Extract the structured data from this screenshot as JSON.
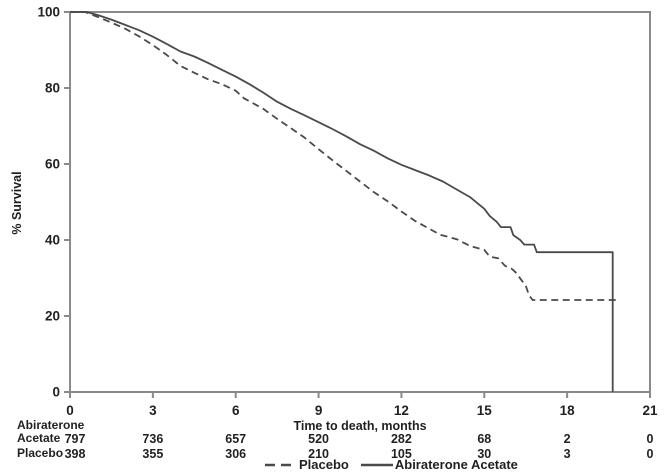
{
  "chart_data": {
    "type": "line",
    "subtype": "kaplan-meier-survival",
    "title": "",
    "xlabel": "Time to death, months",
    "ylabel": "% Survival",
    "xlim": [
      0,
      21
    ],
    "ylim": [
      0,
      100
    ],
    "x_ticks": [
      0,
      3,
      6,
      9,
      12,
      15,
      18,
      21
    ],
    "y_ticks": [
      0,
      20,
      40,
      60,
      80,
      100
    ],
    "grid": false,
    "legend_position": "bottom-center",
    "frame": "full-box",
    "series": [
      {
        "name": "Placebo",
        "style": "dashed",
        "points": [
          [
            0,
            100
          ],
          [
            0.55,
            100
          ],
          [
            1,
            98.7
          ],
          [
            1.5,
            97.2
          ],
          [
            2,
            95.6
          ],
          [
            2.5,
            93.6
          ],
          [
            3,
            91.3
          ],
          [
            3.5,
            88.7
          ],
          [
            4,
            85.8
          ],
          [
            4.5,
            84
          ],
          [
            5,
            82.3
          ],
          [
            5.5,
            81
          ],
          [
            6,
            79.3
          ],
          [
            6.3,
            77.3
          ],
          [
            6.7,
            75.7
          ],
          [
            7,
            74.5
          ],
          [
            7.5,
            71.9
          ],
          [
            8,
            69.4
          ],
          [
            8.5,
            66.9
          ],
          [
            9,
            63.9
          ],
          [
            9.5,
            61
          ],
          [
            10,
            58.2
          ],
          [
            10.5,
            55.4
          ],
          [
            11,
            52.6
          ],
          [
            11.5,
            50.2
          ],
          [
            12,
            47.5
          ],
          [
            12.5,
            45
          ],
          [
            13,
            43
          ],
          [
            13.4,
            41.4
          ],
          [
            14,
            40.2
          ],
          [
            14.5,
            38.4
          ],
          [
            15,
            37.4
          ],
          [
            15.2,
            35.6
          ],
          [
            15.5,
            35.2
          ],
          [
            15.75,
            33.2
          ],
          [
            16,
            32.4
          ],
          [
            16.15,
            31.4
          ],
          [
            16.35,
            29.4
          ],
          [
            16.5,
            28
          ],
          [
            16.62,
            25.5
          ],
          [
            16.75,
            24.2
          ],
          [
            19.9,
            24.2
          ]
        ]
      },
      {
        "name": "Abiraterone Acetate",
        "style": "solid",
        "points": [
          [
            0,
            100
          ],
          [
            0.6,
            100
          ],
          [
            1,
            99.2
          ],
          [
            1.5,
            98
          ],
          [
            2,
            96.6
          ],
          [
            2.5,
            95.2
          ],
          [
            3,
            93.5
          ],
          [
            3.5,
            91.6
          ],
          [
            4,
            89.6
          ],
          [
            4.5,
            88.3
          ],
          [
            5,
            86.6
          ],
          [
            5.5,
            84.8
          ],
          [
            6,
            83
          ],
          [
            6.5,
            81
          ],
          [
            7,
            78.8
          ],
          [
            7.5,
            76.4
          ],
          [
            8,
            74.5
          ],
          [
            8.5,
            72.8
          ],
          [
            9,
            71
          ],
          [
            9.5,
            69.2
          ],
          [
            10,
            67.3
          ],
          [
            10.5,
            65.2
          ],
          [
            11,
            63.5
          ],
          [
            11.5,
            61.5
          ],
          [
            12,
            59.8
          ],
          [
            12.5,
            58.4
          ],
          [
            13,
            57
          ],
          [
            13.5,
            55.4
          ],
          [
            14,
            53.3
          ],
          [
            14.5,
            51.2
          ],
          [
            14.8,
            49.4
          ],
          [
            15,
            48.2
          ],
          [
            15.2,
            46.3
          ],
          [
            15.45,
            44.8
          ],
          [
            15.6,
            43.4
          ],
          [
            15.95,
            43.4
          ],
          [
            16.05,
            41.3
          ],
          [
            16.3,
            40
          ],
          [
            16.45,
            38.8
          ],
          [
            16.8,
            38.8
          ],
          [
            16.9,
            36.8
          ],
          [
            19.65,
            36.8
          ],
          [
            19.65,
            0
          ]
        ]
      }
    ],
    "at_risk": [
      {
        "label_lines": [
          "Abiraterone",
          "Acetate"
        ],
        "values": [
          "797",
          "736",
          "657",
          "520",
          "282",
          "68",
          "2",
          "0"
        ]
      },
      {
        "label_lines": [
          "Placebo"
        ],
        "values": [
          "398",
          "355",
          "306",
          "210",
          "105",
          "30",
          "3",
          "0"
        ]
      }
    ]
  },
  "labels": {
    "ylabel": "% Survival",
    "xlabel": "Time to death, months",
    "risk_row1_line1": "Abiraterone",
    "risk_row1_line2": "Acetate",
    "risk_row2_label": "Placebo",
    "legend_placebo": "Placebo",
    "legend_abiraterone": "Abiraterone Acetate"
  },
  "colors": {
    "background": "#ffffff",
    "axis": "#8a8a8a",
    "curve": "#4a4a4a",
    "text": "#221f1f"
  }
}
